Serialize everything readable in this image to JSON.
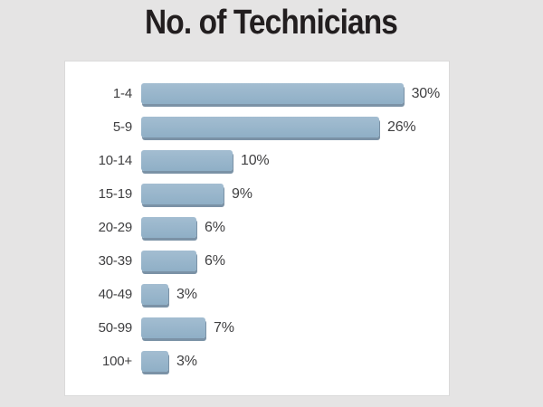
{
  "chart_data": {
    "type": "bar",
    "orientation": "horizontal",
    "title": "No. of Technicians",
    "categories": [
      "1-4",
      "5-9",
      "10-14",
      "15-19",
      "20-29",
      "30-39",
      "40-49",
      "50-99",
      "100+"
    ],
    "values": [
      30,
      26,
      10,
      9,
      6,
      6,
      3,
      7,
      3
    ],
    "value_labels": [
      "30%",
      "26%",
      "10%",
      "9%",
      "6%",
      "6%",
      "3%",
      "7%",
      "3%"
    ],
    "xlabel": "",
    "ylabel": "",
    "xlim": [
      0,
      30
    ],
    "grid": false,
    "legend": false,
    "layout_hints": {
      "value_label_position": "right-of-bar",
      "category_label_position": "left-of-bar"
    },
    "colors": {
      "bar_top": "#a3bdd1",
      "bar_bottom": "#8fafc6",
      "bar_shadow": "#7b92a6",
      "panel_bg": "#ffffff",
      "page_bg": "#e5e4e4",
      "title_text": "#221e1f",
      "label_text": "#404042"
    }
  }
}
